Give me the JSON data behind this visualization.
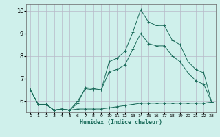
{
  "xlabel": "Humidex (Indice chaleur)",
  "ylabel": "",
  "background_color": "#cff0eb",
  "grid_color": "#b8b8c8",
  "line_color": "#1a6b5a",
  "xlim": [
    -0.5,
    23.5
  ],
  "ylim": [
    5.5,
    10.3
  ],
  "xtick_vals": [
    0,
    1,
    2,
    3,
    4,
    5,
    6,
    7,
    8,
    9,
    10,
    11,
    12,
    13,
    14,
    15,
    16,
    17,
    18,
    19,
    20,
    21,
    22,
    23
  ],
  "ytick_vals": [
    6,
    7,
    8,
    9,
    10
  ],
  "series": [
    {
      "x": [
        0,
        1,
        2,
        3,
        4,
        5,
        6,
        7,
        8,
        9,
        10,
        11,
        12,
        13,
        14,
        15,
        16,
        17,
        18,
        19,
        20,
        21,
        22,
        23
      ],
      "y": [
        6.5,
        5.85,
        5.85,
        5.6,
        5.65,
        5.6,
        5.9,
        6.6,
        6.55,
        6.5,
        7.75,
        7.9,
        8.2,
        9.05,
        10.05,
        9.5,
        9.35,
        9.35,
        8.7,
        8.5,
        7.75,
        7.4,
        7.25,
        5.95
      ]
    },
    {
      "x": [
        0,
        1,
        2,
        3,
        4,
        5,
        6,
        7,
        8,
        9,
        10,
        11,
        12,
        13,
        14,
        15,
        16,
        17,
        18,
        19,
        20,
        21,
        22,
        23
      ],
      "y": [
        6.5,
        5.85,
        5.85,
        5.6,
        5.65,
        5.6,
        5.65,
        5.65,
        5.65,
        5.65,
        5.7,
        5.75,
        5.8,
        5.85,
        5.9,
        5.9,
        5.9,
        5.9,
        5.9,
        5.9,
        5.9,
        5.9,
        5.9,
        5.95
      ]
    },
    {
      "x": [
        0,
        1,
        2,
        3,
        4,
        5,
        6,
        7,
        8,
        9,
        10,
        11,
        12,
        13,
        14,
        15,
        16,
        17,
        18,
        19,
        20,
        21,
        22,
        23
      ],
      "y": [
        6.5,
        5.85,
        5.85,
        5.6,
        5.65,
        5.6,
        6.0,
        6.55,
        6.5,
        6.5,
        7.3,
        7.4,
        7.6,
        8.3,
        9.0,
        8.55,
        8.45,
        8.45,
        8.0,
        7.75,
        7.25,
        6.9,
        6.75,
        5.95
      ]
    }
  ]
}
